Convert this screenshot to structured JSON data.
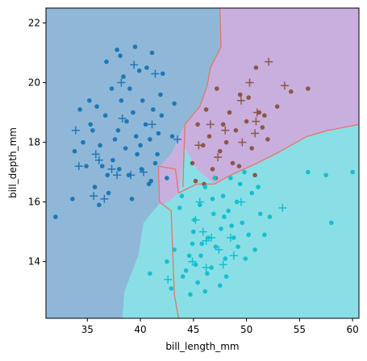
{
  "chart_data": {
    "type": "scatter",
    "title": "",
    "xlabel": "bill_length_mm",
    "ylabel": "bill_depth_mm",
    "xlim": [
      31.1,
      60.6
    ],
    "ylim": [
      12.1,
      22.5
    ],
    "xticks": [
      35,
      40,
      45,
      50,
      55,
      60
    ],
    "yticks": [
      14,
      16,
      18,
      20,
      22
    ],
    "grid": false,
    "legend": "none",
    "colors": {
      "region_a": "#8fb8d8",
      "region_b": "#c9afdd",
      "region_c": "#8adfe6",
      "boundary": "#e07a70",
      "class_a": "#1f77b4",
      "class_b": "#8c564b",
      "class_c": "#17becf"
    },
    "boundary_ab": [
      [
        44.0,
        16.5
      ],
      [
        44.2,
        18.6
      ],
      [
        45.6,
        19.2
      ],
      [
        46.3,
        19.9
      ],
      [
        46.6,
        20.5
      ],
      [
        47.6,
        21.2
      ],
      [
        47.5,
        22.5
      ]
    ],
    "boundary_bc": [
      [
        43.6,
        12.1
      ],
      [
        43.2,
        12.9
      ],
      [
        42.9,
        15.7
      ],
      [
        41.8,
        16.0
      ],
      [
        41.7,
        17.2
      ],
      [
        43.3,
        17.1
      ],
      [
        43.6,
        16.3
      ],
      [
        45.3,
        16.6
      ],
      [
        47.0,
        16.6
      ],
      [
        48.5,
        16.9
      ],
      [
        51.0,
        17.3
      ],
      [
        53.2,
        17.7
      ],
      [
        55.7,
        18.2
      ],
      [
        57.7,
        18.4
      ],
      [
        60.6,
        18.6
      ]
    ],
    "region_a_polygon": [
      [
        31.1,
        12.1
      ],
      [
        38.3,
        12.1
      ],
      [
        38.5,
        13.0
      ],
      [
        39.8,
        14.2
      ],
      [
        40.3,
        15.3
      ],
      [
        41.7,
        15.9
      ],
      [
        41.8,
        17.2
      ],
      [
        42.9,
        17.6
      ],
      [
        44.2,
        18.6
      ],
      [
        45.6,
        19.2
      ],
      [
        46.3,
        19.9
      ],
      [
        46.6,
        20.5
      ],
      [
        47.6,
        21.2
      ],
      [
        47.5,
        22.5
      ],
      [
        31.1,
        22.5
      ]
    ],
    "region_b_polygon": [
      [
        41.7,
        15.9
      ],
      [
        42.6,
        16.0
      ],
      [
        43.6,
        16.3
      ],
      [
        44.2,
        17.8
      ],
      [
        45.3,
        17.1
      ],
      [
        47.0,
        16.6
      ],
      [
        48.5,
        16.9
      ],
      [
        51.0,
        17.3
      ],
      [
        53.2,
        17.7
      ],
      [
        55.7,
        18.2
      ],
      [
        57.7,
        18.4
      ],
      [
        60.6,
        18.6
      ],
      [
        60.6,
        22.5
      ],
      [
        47.5,
        22.5
      ],
      [
        47.6,
        21.2
      ],
      [
        46.6,
        20.5
      ],
      [
        46.3,
        19.9
      ],
      [
        45.6,
        19.2
      ],
      [
        44.2,
        18.6
      ],
      [
        42.9,
        17.6
      ],
      [
        41.8,
        17.2
      ]
    ],
    "series": [
      {
        "class": "a",
        "train_points": [
          [
            37.8,
            21.1
          ],
          [
            41.1,
            21.0
          ],
          [
            39.5,
            21.2
          ],
          [
            38.1,
            20.9
          ],
          [
            39.9,
            20.4
          ],
          [
            36.8,
            20.7
          ],
          [
            40.6,
            20.5
          ],
          [
            42.1,
            20.3
          ],
          [
            38.4,
            20.2
          ],
          [
            41.9,
            19.6
          ],
          [
            43.2,
            19.3
          ],
          [
            37.3,
            19.8
          ],
          [
            39.0,
            19.8
          ],
          [
            35.2,
            19.4
          ],
          [
            40.2,
            19.4
          ],
          [
            42.0,
            18.9
          ],
          [
            36.7,
            18.9
          ],
          [
            38.7,
            18.7
          ],
          [
            41.2,
            19.1
          ],
          [
            34.3,
            19.1
          ],
          [
            35.9,
            19.2
          ],
          [
            39.3,
            19.0
          ],
          [
            40.5,
            18.6
          ],
          [
            37.9,
            18.4
          ],
          [
            35.5,
            18.4
          ],
          [
            41.7,
            18.3
          ],
          [
            43.0,
            18.2
          ],
          [
            36.2,
            17.9
          ],
          [
            38.6,
            17.8
          ],
          [
            40.0,
            17.9
          ],
          [
            33.8,
            17.7
          ],
          [
            39.7,
            17.6
          ],
          [
            37.4,
            17.4
          ],
          [
            41.4,
            17.3
          ],
          [
            34.9,
            17.2
          ],
          [
            36.9,
            16.9
          ],
          [
            38.9,
            16.9
          ],
          [
            40.8,
            16.6
          ],
          [
            35.7,
            16.5
          ],
          [
            37.0,
            16.3
          ],
          [
            39.2,
            16.1
          ],
          [
            41.0,
            16.7
          ],
          [
            33.6,
            16.1
          ],
          [
            32.0,
            15.5
          ],
          [
            36.1,
            15.9
          ],
          [
            40.1,
            17.1
          ],
          [
            42.5,
            16.8
          ],
          [
            37.6,
            18.1
          ],
          [
            35.3,
            18.6
          ],
          [
            39.6,
            18.2
          ],
          [
            38.2,
            19.4
          ],
          [
            34.6,
            18.0
          ],
          [
            41.6,
            17.6
          ],
          [
            36.4,
            17.2
          ],
          [
            40.9,
            18.1
          ],
          [
            38.0,
            17.1
          ]
        ],
        "test_points": [
          [
            38.2,
            20.0
          ],
          [
            39.4,
            20.6
          ],
          [
            41.4,
            20.3
          ],
          [
            33.9,
            18.4
          ],
          [
            38.3,
            18.8
          ],
          [
            43.5,
            18.1
          ],
          [
            35.8,
            17.6
          ],
          [
            37.3,
            17.1
          ],
          [
            34.2,
            17.2
          ],
          [
            35.6,
            16.2
          ],
          [
            39.1,
            16.9
          ],
          [
            37.8,
            16.9
          ],
          [
            40.3,
            17.0
          ],
          [
            36.6,
            16.1
          ],
          [
            41.1,
            18.6
          ],
          [
            36.1,
            17.4
          ]
        ]
      },
      {
        "class": "b",
        "train_points": [
          [
            50.9,
            20.5
          ],
          [
            47.2,
            19.8
          ],
          [
            50.2,
            19.5
          ],
          [
            49.4,
            19.6
          ],
          [
            52.9,
            19.2
          ],
          [
            48.4,
            19.0
          ],
          [
            51.2,
            19.0
          ],
          [
            46.2,
            19.1
          ],
          [
            50.0,
            18.7
          ],
          [
            47.8,
            18.6
          ],
          [
            45.4,
            18.6
          ],
          [
            51.5,
            18.5
          ],
          [
            49.0,
            18.4
          ],
          [
            46.5,
            18.2
          ],
          [
            52.0,
            18.1
          ],
          [
            45.9,
            17.9
          ],
          [
            50.5,
            17.8
          ],
          [
            47.5,
            17.7
          ],
          [
            44.9,
            17.3
          ],
          [
            46.8,
            17.1
          ],
          [
            48.7,
            17.3
          ],
          [
            45.2,
            16.7
          ],
          [
            47.1,
            16.8
          ],
          [
            49.3,
            17.2
          ],
          [
            51.7,
            18.9
          ],
          [
            55.8,
            19.8
          ],
          [
            54.2,
            19.7
          ],
          [
            50.8,
            16.9
          ],
          [
            46.0,
            16.6
          ],
          [
            48.1,
            18.0
          ]
        ],
        "test_points": [
          [
            52.1,
            20.7
          ],
          [
            50.3,
            20.0
          ],
          [
            49.5,
            19.4
          ],
          [
            51.0,
            19.0
          ],
          [
            53.6,
            19.9
          ],
          [
            46.6,
            18.6
          ],
          [
            50.9,
            18.7
          ],
          [
            48.0,
            18.4
          ],
          [
            47.3,
            17.5
          ],
          [
            49.6,
            18.0
          ],
          [
            45.5,
            17.9
          ],
          [
            50.8,
            18.3
          ]
        ]
      },
      {
        "class": "c",
        "train_points": [
          [
            60.0,
            17.0
          ],
          [
            55.8,
            17.0
          ],
          [
            57.5,
            16.9
          ],
          [
            49.8,
            17.0
          ],
          [
            48.5,
            16.8
          ],
          [
            46.1,
            16.5
          ],
          [
            51.1,
            16.5
          ],
          [
            47.8,
            16.2
          ],
          [
            49.1,
            16.0
          ],
          [
            50.5,
            16.3
          ],
          [
            45.6,
            15.9
          ],
          [
            46.9,
            15.6
          ],
          [
            48.3,
            15.7
          ],
          [
            49.6,
            15.3
          ],
          [
            51.3,
            15.6
          ],
          [
            47.6,
            15.1
          ],
          [
            45.1,
            15.4
          ],
          [
            50.2,
            14.9
          ],
          [
            46.4,
            14.8
          ],
          [
            48.8,
            14.8
          ],
          [
            44.9,
            14.6
          ],
          [
            47.1,
            14.5
          ],
          [
            45.7,
            14.2
          ],
          [
            49.9,
            14.1
          ],
          [
            43.2,
            14.4
          ],
          [
            46.7,
            13.8
          ],
          [
            44.3,
            13.7
          ],
          [
            48.1,
            13.5
          ],
          [
            45.4,
            13.3
          ],
          [
            42.9,
            13.1
          ],
          [
            46.1,
            13.0
          ],
          [
            44.7,
            12.9
          ],
          [
            47.5,
            13.2
          ],
          [
            45.0,
            15.0
          ],
          [
            48.0,
            14.1
          ],
          [
            52.2,
            15.5
          ],
          [
            43.7,
            15.8
          ],
          [
            46.8,
            16.1
          ],
          [
            49.2,
            14.5
          ],
          [
            44.0,
            13.5
          ],
          [
            40.9,
            13.6
          ],
          [
            42.5,
            14.0
          ],
          [
            50.8,
            14.4
          ],
          [
            47.0,
            16.8
          ],
          [
            45.8,
            14.6
          ],
          [
            43.9,
            16.2
          ],
          [
            58.0,
            15.3
          ],
          [
            46.3,
            13.6
          ],
          [
            44.6,
            14.2
          ],
          [
            48.6,
            15.2
          ],
          [
            51.7,
            14.9
          ],
          [
            45.2,
            13.9
          ],
          [
            49.4,
            16.6
          ],
          [
            47.9,
            15.5
          ]
        ],
        "test_points": [
          [
            45.2,
            15.4
          ],
          [
            49.5,
            16.0
          ],
          [
            53.4,
            15.8
          ],
          [
            46.7,
            14.8
          ],
          [
            47.4,
            14.4
          ],
          [
            48.5,
            14.8
          ],
          [
            45.9,
            15.0
          ],
          [
            47.8,
            13.9
          ],
          [
            46.2,
            13.8
          ],
          [
            42.6,
            13.4
          ],
          [
            45.6,
            16.0
          ],
          [
            46.2,
            14.7
          ],
          [
            48.8,
            14.2
          ],
          [
            44.9,
            14.0
          ]
        ]
      }
    ]
  }
}
